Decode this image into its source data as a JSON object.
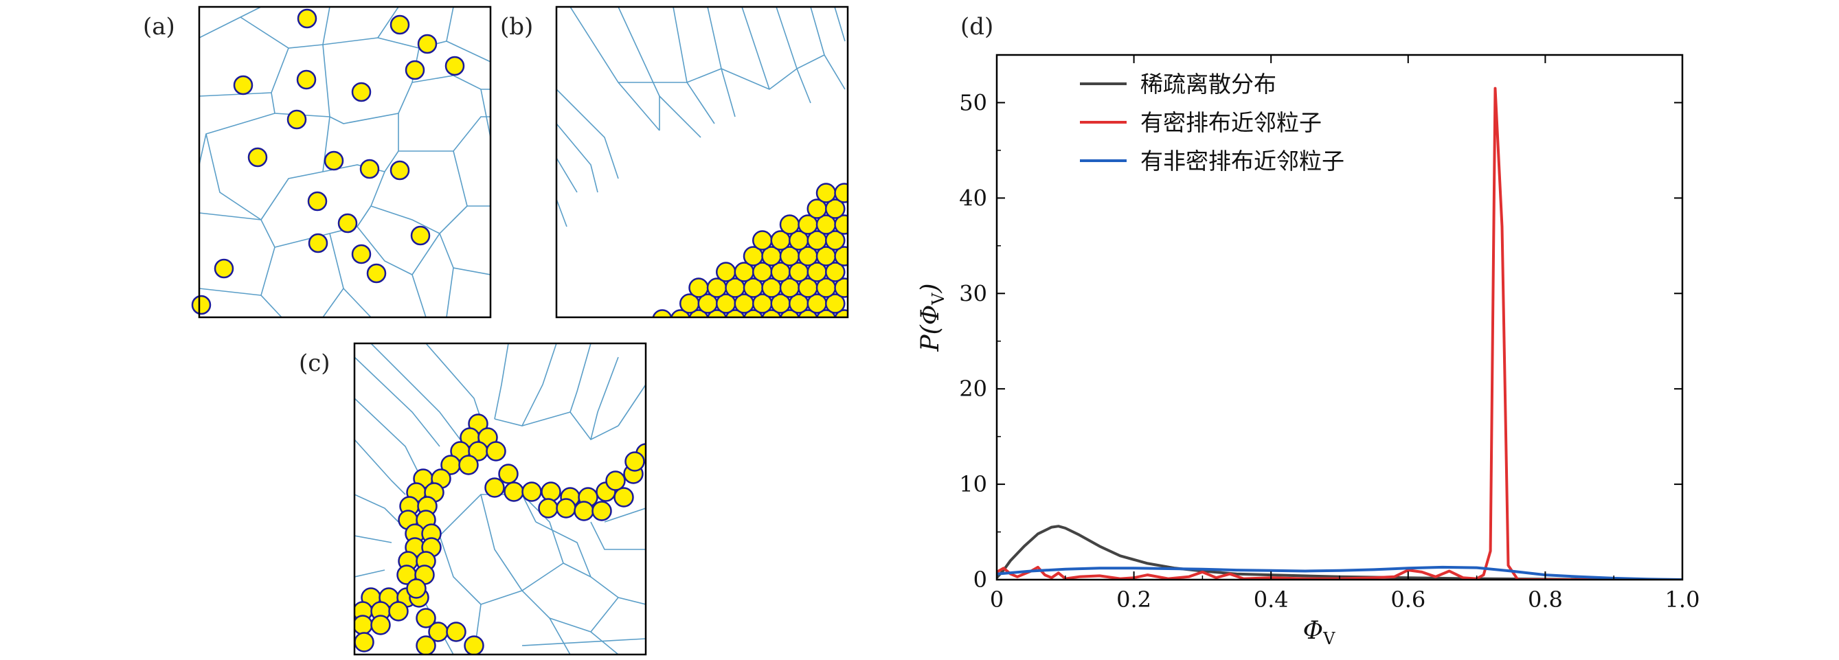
{
  "panels": {
    "a": {
      "label": "(a)"
    },
    "b": {
      "label": "(b)"
    },
    "c": {
      "label": "(c)"
    },
    "d": {
      "label": "(d)"
    }
  },
  "chart_data": {
    "type": "line",
    "title": "",
    "xlabel": "Φ",
    "xlabel_sub": "V",
    "ylabel_pre": "P(Φ",
    "ylabel_sub": "V",
    "ylabel_post": ")",
    "xlim": [
      0,
      1.0
    ],
    "ylim": [
      0,
      55
    ],
    "xticks": [
      0,
      0.2,
      0.4,
      0.6,
      0.8,
      1.0
    ],
    "xtick_labels": [
      "0",
      "0.2",
      "0.4",
      "0.6",
      "0.8",
      "1.0"
    ],
    "yticks": [
      0,
      10,
      20,
      30,
      40,
      50
    ],
    "ytick_labels": [
      "0",
      "10",
      "20",
      "30",
      "40",
      "50"
    ],
    "legend_position": "top-left",
    "series": [
      {
        "name": "稀疏离散分布",
        "color": "#444444",
        "points": [
          [
            0,
            0.2
          ],
          [
            0.01,
            1.0
          ],
          [
            0.02,
            2.0
          ],
          [
            0.04,
            3.5
          ],
          [
            0.06,
            4.8
          ],
          [
            0.08,
            5.5
          ],
          [
            0.09,
            5.6
          ],
          [
            0.1,
            5.4
          ],
          [
            0.12,
            4.7
          ],
          [
            0.15,
            3.5
          ],
          [
            0.18,
            2.5
          ],
          [
            0.22,
            1.7
          ],
          [
            0.26,
            1.2
          ],
          [
            0.3,
            0.9
          ],
          [
            0.35,
            0.6
          ],
          [
            0.4,
            0.5
          ],
          [
            0.5,
            0.3
          ],
          [
            0.6,
            0.2
          ],
          [
            0.7,
            0.1
          ],
          [
            0.8,
            0.05
          ],
          [
            0.9,
            0.0
          ],
          [
            1.0,
            0.0
          ]
        ]
      },
      {
        "name": "有密排布近邻粒子",
        "color": "#e03030",
        "points": [
          [
            0,
            0.8
          ],
          [
            0.01,
            1.2
          ],
          [
            0.02,
            0.6
          ],
          [
            0.03,
            0.3
          ],
          [
            0.05,
            0.9
          ],
          [
            0.06,
            1.3
          ],
          [
            0.07,
            0.5
          ],
          [
            0.08,
            0.2
          ],
          [
            0.09,
            0.7
          ],
          [
            0.1,
            0.1
          ],
          [
            0.12,
            0.3
          ],
          [
            0.15,
            0.4
          ],
          [
            0.18,
            0.1
          ],
          [
            0.2,
            0.2
          ],
          [
            0.22,
            0.5
          ],
          [
            0.25,
            0.1
          ],
          [
            0.28,
            0.3
          ],
          [
            0.3,
            0.8
          ],
          [
            0.32,
            0.2
          ],
          [
            0.34,
            0.6
          ],
          [
            0.36,
            0.1
          ],
          [
            0.4,
            0.2
          ],
          [
            0.45,
            0.1
          ],
          [
            0.5,
            0.1
          ],
          [
            0.55,
            0.2
          ],
          [
            0.58,
            0.3
          ],
          [
            0.6,
            1.0
          ],
          [
            0.62,
            0.8
          ],
          [
            0.64,
            0.3
          ],
          [
            0.66,
            0.9
          ],
          [
            0.68,
            0.2
          ],
          [
            0.7,
            0.1
          ],
          [
            0.71,
            0.5
          ],
          [
            0.72,
            3.0
          ],
          [
            0.727,
            51.5
          ],
          [
            0.737,
            37.0
          ],
          [
            0.746,
            1.5
          ],
          [
            0.76,
            0.0
          ],
          [
            0.8,
            0.0
          ],
          [
            1.0,
            0.0
          ]
        ]
      },
      {
        "name": "有非密排布近邻粒子",
        "color": "#2060c0",
        "points": [
          [
            0,
            0.6
          ],
          [
            0.05,
            0.9
          ],
          [
            0.1,
            1.1
          ],
          [
            0.15,
            1.2
          ],
          [
            0.2,
            1.2
          ],
          [
            0.25,
            1.15
          ],
          [
            0.3,
            1.1
          ],
          [
            0.35,
            1.0
          ],
          [
            0.4,
            0.95
          ],
          [
            0.45,
            0.9
          ],
          [
            0.5,
            0.95
          ],
          [
            0.55,
            1.05
          ],
          [
            0.6,
            1.2
          ],
          [
            0.65,
            1.3
          ],
          [
            0.7,
            1.25
          ],
          [
            0.75,
            0.9
          ],
          [
            0.8,
            0.5
          ],
          [
            0.85,
            0.3
          ],
          [
            0.9,
            0.15
          ],
          [
            0.95,
            0.05
          ],
          [
            1.0,
            0.0
          ]
        ]
      }
    ]
  }
}
